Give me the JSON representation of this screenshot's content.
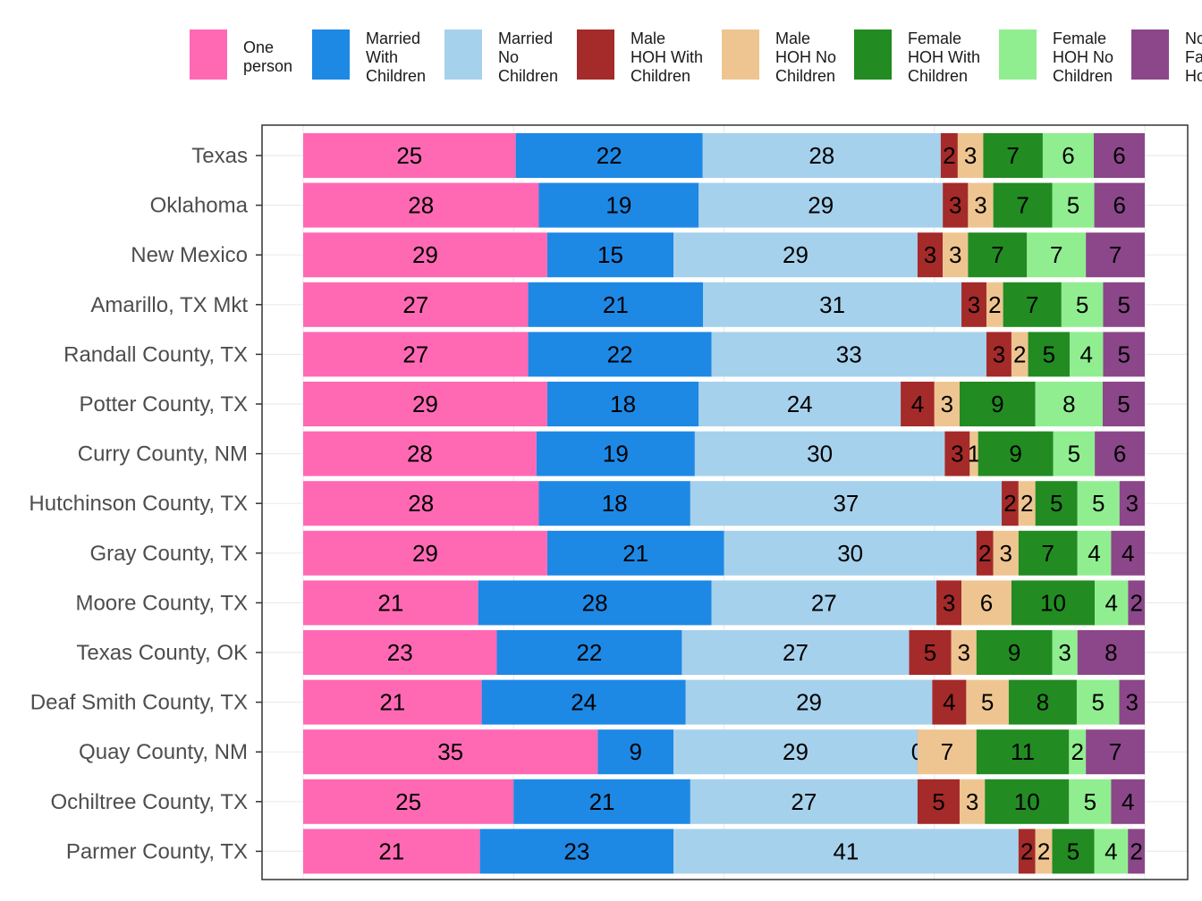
{
  "chart_data": {
    "type": "bar",
    "orientation": "horizontal",
    "stacked": true,
    "normalized_percent": true,
    "legend_position": "top",
    "categories": [
      "Texas",
      "Oklahoma",
      "New Mexico",
      "Amarillo, TX Mkt",
      "Randall County, TX",
      "Potter County, TX",
      "Curry County, NM",
      "Hutchinson County, TX",
      "Gray County, TX",
      "Moore County, TX",
      "Texas County, OK",
      "Deaf Smith County, TX",
      "Quay County, NM",
      "Ochiltree County, TX",
      "Parmer County, TX"
    ],
    "series": [
      {
        "name": "One person",
        "color": "#ff69b4",
        "values": [
          25,
          28,
          29,
          27,
          27,
          29,
          28,
          28,
          29,
          21,
          23,
          21,
          35,
          25,
          21
        ]
      },
      {
        "name": "Married With Children",
        "color": "#1e88e5",
        "values": [
          22,
          19,
          15,
          21,
          22,
          18,
          19,
          18,
          21,
          28,
          22,
          24,
          9,
          21,
          23
        ]
      },
      {
        "name": "Married No Children",
        "color": "#a6d1ec",
        "values": [
          28,
          29,
          29,
          31,
          33,
          24,
          30,
          37,
          30,
          27,
          27,
          29,
          29,
          27,
          41
        ]
      },
      {
        "name": "Male HOH With Children",
        "color": "#a52a2a",
        "values": [
          2,
          3,
          3,
          3,
          3,
          4,
          3,
          2,
          2,
          3,
          5,
          4,
          0,
          5,
          2
        ]
      },
      {
        "name": "Male HOH No Children",
        "color": "#eec591",
        "values": [
          3,
          3,
          3,
          2,
          2,
          3,
          1,
          2,
          3,
          6,
          3,
          5,
          7,
          3,
          2
        ]
      },
      {
        "name": "Female HOH With Children",
        "color": "#228b22",
        "values": [
          7,
          7,
          7,
          7,
          5,
          9,
          9,
          5,
          7,
          10,
          9,
          8,
          11,
          10,
          5
        ]
      },
      {
        "name": "Female HOH No Children",
        "color": "#90ee90",
        "values": [
          6,
          5,
          7,
          5,
          4,
          8,
          5,
          5,
          4,
          4,
          3,
          5,
          2,
          5,
          4
        ]
      },
      {
        "name": "Non Family Ho",
        "color": "#8b4789",
        "values": [
          6,
          6,
          7,
          5,
          5,
          5,
          6,
          3,
          4,
          2,
          8,
          3,
          7,
          4,
          2
        ]
      }
    ],
    "legend_labels": [
      [
        "One",
        "person"
      ],
      [
        "Married",
        "With",
        "Children"
      ],
      [
        "Married",
        "No",
        "Children"
      ],
      [
        "Male",
        "HOH With",
        "Children"
      ],
      [
        "Male",
        "HOH No",
        "Children"
      ],
      [
        "Female",
        "HOH With",
        "Children"
      ],
      [
        "Female",
        "HOH No",
        "Children"
      ],
      [
        "No",
        "Fa",
        "Ho"
      ]
    ],
    "grid": true,
    "x_tick_labels_shown": false
  }
}
